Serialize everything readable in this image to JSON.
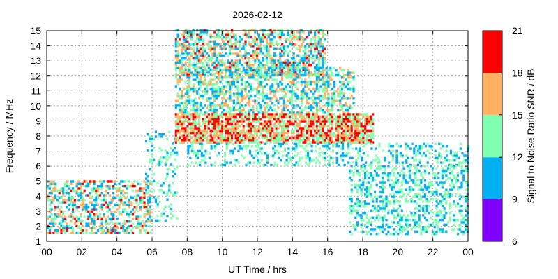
{
  "chart_data": {
    "type": "heatmap",
    "title": "2026-02-12",
    "xlabel": "UT Time / hrs",
    "ylabel": "Frequency / MHz",
    "xlim": [
      0,
      24
    ],
    "ylim": [
      1,
      15
    ],
    "x_ticks": [
      "00",
      "02",
      "04",
      "06",
      "08",
      "10",
      "12",
      "14",
      "16",
      "18",
      "20",
      "22",
      "00"
    ],
    "y_ticks": [
      "1",
      "2",
      "3",
      "4",
      "5",
      "6",
      "7",
      "8",
      "9",
      "10",
      "11",
      "12",
      "13",
      "14",
      "15"
    ],
    "grid": true,
    "colorbar": {
      "label": "Signal to Noise Ratio SNR / dB",
      "ticks": [
        "6",
        "9",
        "12",
        "15",
        "18",
        "21"
      ],
      "bands": [
        {
          "from": 6,
          "to": 9,
          "color": "#7f00ff"
        },
        {
          "from": 9,
          "to": 12,
          "color": "#00b0f0"
        },
        {
          "from": 12,
          "to": 15,
          "color": "#80ffb0"
        },
        {
          "from": 15,
          "to": 18,
          "color": "#ffb060"
        },
        {
          "from": 18,
          "to": 21,
          "color": "#ff0000"
        }
      ]
    },
    "regions": [
      {
        "t": [
          0.0,
          5.9
        ],
        "f": [
          1.5,
          5.0
        ],
        "density": 0.48,
        "snr": [
          9,
          19
        ]
      },
      {
        "t": [
          5.6,
          7.4
        ],
        "f": [
          2.3,
          8.2
        ],
        "density": 0.22,
        "snr": [
          9,
          15
        ]
      },
      {
        "t": [
          7.3,
          15.8
        ],
        "f": [
          12.0,
          15.0
        ],
        "density": 0.55,
        "snr": [
          9,
          19
        ]
      },
      {
        "t": [
          7.3,
          17.5
        ],
        "f": [
          9.5,
          12.5
        ],
        "density": 0.5,
        "snr": [
          9,
          17
        ]
      },
      {
        "t": [
          7.3,
          18.6
        ],
        "f": [
          7.5,
          9.5
        ],
        "density": 0.75,
        "snr": [
          12,
          21
        ]
      },
      {
        "t": [
          8.0,
          24.0
        ],
        "f": [
          6.0,
          7.5
        ],
        "density": 0.3,
        "snr": [
          9,
          15
        ]
      },
      {
        "t": [
          17.2,
          24.0
        ],
        "f": [
          1.4,
          6.0
        ],
        "density": 0.38,
        "snr": [
          9,
          15
        ]
      }
    ]
  }
}
